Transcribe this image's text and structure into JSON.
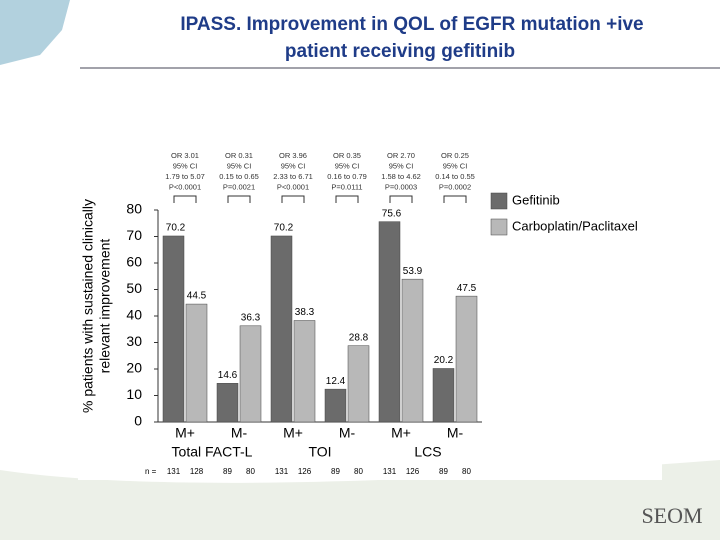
{
  "chart_data": {
    "type": "bar",
    "title": [
      "IPASS. Improvement in QOL of EGFR mutation +ive",
      "patient receiving gefitinib"
    ],
    "ylabel": [
      "% patients with sustained clinically",
      "relevant improvement"
    ],
    "categories": [
      "M+",
      "M-",
      "M+",
      "M-",
      "M+",
      "M-"
    ],
    "groups": [
      "Total FACT-L",
      "TOI",
      "LCS"
    ],
    "series": [
      {
        "name": "Gefitinib",
        "color": "#6b6b6b",
        "values": [
          70.2,
          14.6,
          70.2,
          12.4,
          75.6,
          20.2
        ],
        "n": [
          131,
          89,
          131,
          89,
          131,
          89
        ]
      },
      {
        "name": "Carboplatin/Paclitaxel",
        "color": "#b8b8b8",
        "values": [
          44.5,
          36.3,
          38.3,
          28.8,
          53.9,
          47.5
        ],
        "n": [
          128,
          80,
          126,
          80,
          126,
          80
        ]
      }
    ],
    "n_label": "n =",
    "annotations": [
      [
        "OR 3.01",
        "95% CI",
        "1.79 to 5.07",
        "P<0.0001"
      ],
      [
        "OR 0.31",
        "95% CI",
        "0.15 to 0.65",
        "P=0.0021"
      ],
      [
        "OR 3.96",
        "95% CI",
        "2.33 to 6.71",
        "P<0.0001"
      ],
      [
        "OR 0.35",
        "95% CI",
        "0.16 to 0.79",
        "P=0.0111"
      ],
      [
        "OR 2.70",
        "95% CI",
        "1.58 to 4.62",
        "P=0.0003"
      ],
      [
        "OR 0.25",
        "95% CI",
        "0.14 to 0.55",
        "P=0.0002"
      ]
    ],
    "ylim": [
      0,
      80
    ],
    "yticks": [
      0,
      10,
      20,
      30,
      40,
      50,
      60,
      70,
      80
    ],
    "grid": false,
    "logo": "SEOM"
  }
}
